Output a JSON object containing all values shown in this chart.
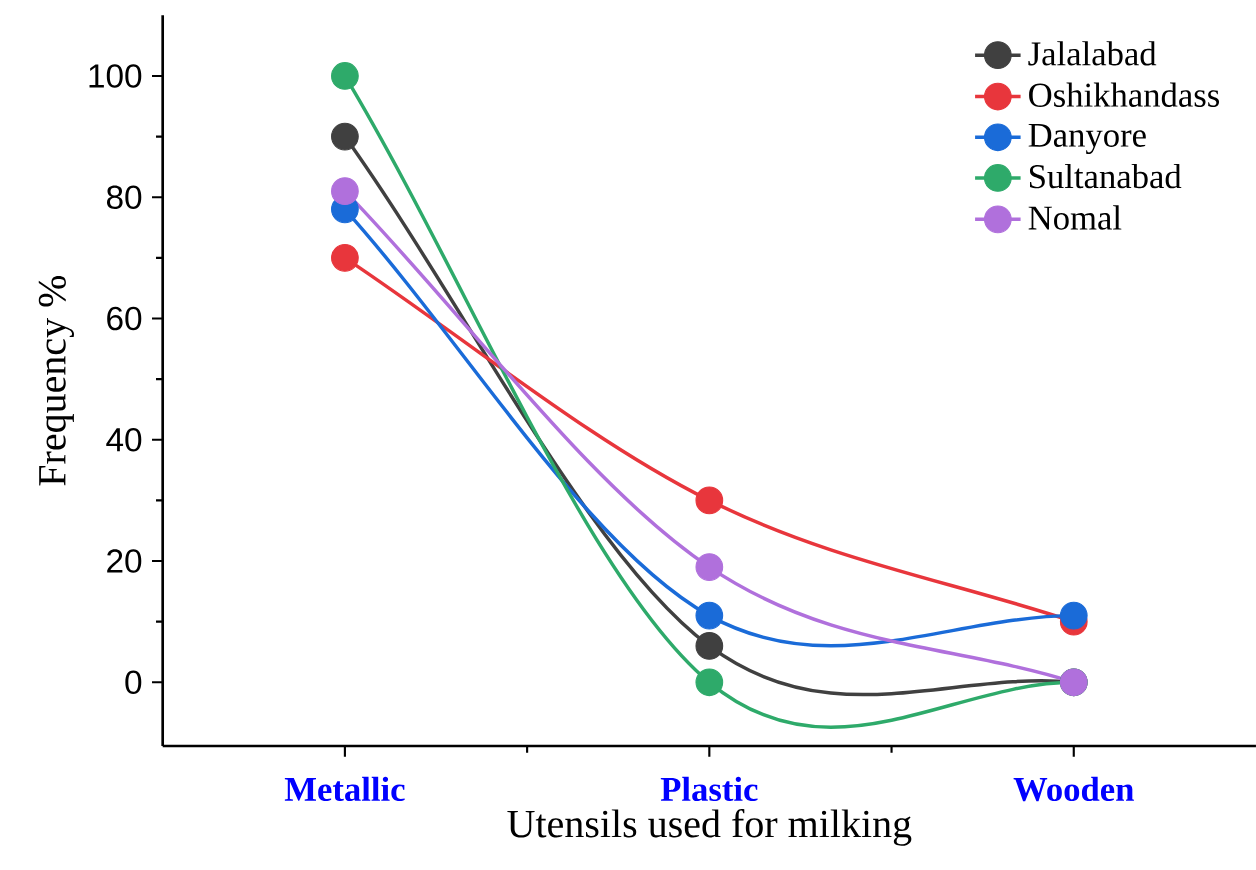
{
  "chart_data": {
    "type": "line",
    "xlabel": "Utensils used for milking",
    "ylabel": "Frequency %",
    "categories": [
      "Metallic",
      "Plastic",
      "Wooden"
    ],
    "series": [
      {
        "name": "Jalalabad",
        "color": "#404040",
        "values": [
          90,
          6,
          0
        ]
      },
      {
        "name": "Oshikhandass",
        "color": "#e8363c",
        "values": [
          70,
          30,
          10
        ]
      },
      {
        "name": "Danyore",
        "color": "#1a6bd8",
        "values": [
          78,
          11,
          11
        ]
      },
      {
        "name": "Sultanabad",
        "color": "#2eaa6a",
        "values": [
          100,
          0,
          0
        ]
      },
      {
        "name": "Nomal",
        "color": "#b070dc",
        "values": [
          81,
          19,
          0
        ]
      }
    ],
    "ylim": [
      -10.5,
      110
    ],
    "yticks": [
      0,
      20,
      40,
      60,
      80,
      100
    ],
    "legend": "top right",
    "marker": "circle",
    "line_style": "solid"
  }
}
